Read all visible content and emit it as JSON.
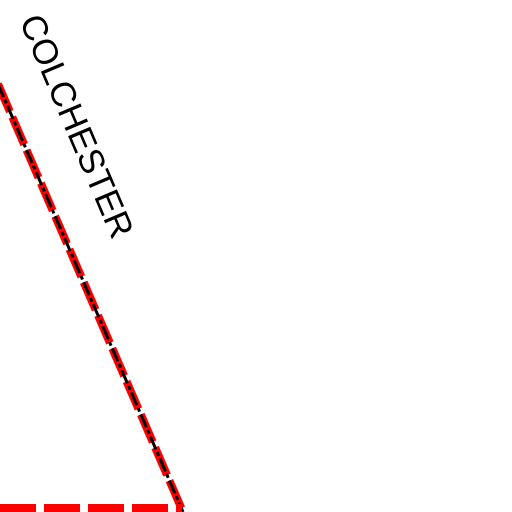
{
  "map": {
    "place_label": "COLCHESTER",
    "boundary_colors": {
      "outer": "#ff0000",
      "inner": "#000000"
    },
    "background_color": "#ffffff"
  }
}
